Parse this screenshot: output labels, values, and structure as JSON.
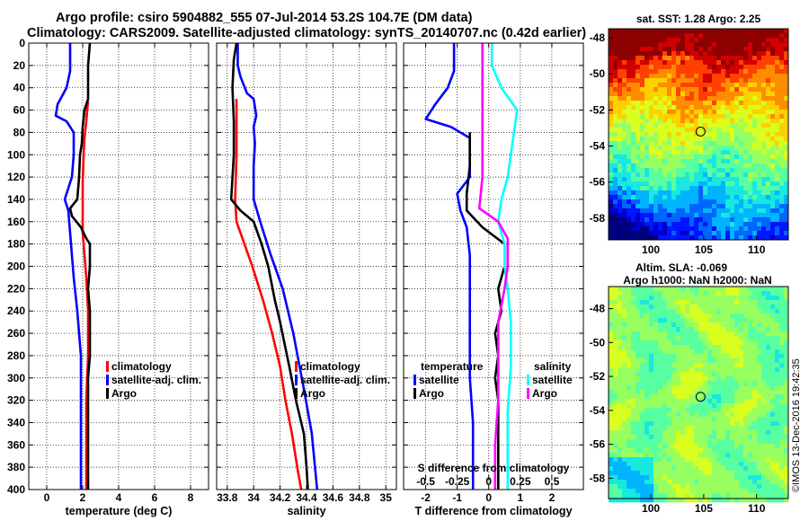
{
  "title_line1": "Argo profile: csiro 5904882_555 07-Jul-2014 53.2S 104.7E (DM data)",
  "title_line2": "Climatology: CARS2009. Satellite-adjusted climatology: synTS_20140707.nc (0.42d earlier)",
  "watermark": "©IMOS 13-Dec-2016 19:42:35",
  "colors": {
    "climatology": "#ff0000",
    "satellite": "#0000ff",
    "argo": "#000000",
    "sat_salinity": "#00ffff",
    "argo_salinity": "#ff00ff"
  },
  "chart_data": [
    {
      "id": "temperature",
      "type": "line",
      "xlabel": "temperature (deg C)",
      "ylabel": "",
      "xlim": [
        -1,
        9
      ],
      "ylim": [
        0,
        400
      ],
      "xticks": [
        0,
        2,
        4,
        6,
        8
      ],
      "xticklabels": [
        "0",
        "2",
        "4",
        "6",
        "8"
      ],
      "yticks": [
        0,
        20,
        40,
        60,
        80,
        100,
        120,
        140,
        160,
        180,
        200,
        220,
        240,
        260,
        280,
        300,
        320,
        340,
        360,
        380,
        400
      ],
      "grid": true,
      "legend": {
        "position": "bottom-right",
        "entries": [
          "climatology",
          "satellite-adj. clim.",
          "Argo"
        ]
      },
      "series": [
        {
          "name": "climatology",
          "color": "#ff0000",
          "points": [
            [
              2.3,
              52
            ],
            [
              2.25,
              60
            ],
            [
              2.2,
              70
            ],
            [
              2.1,
              85
            ],
            [
              2.05,
              100
            ],
            [
              2.0,
              125
            ],
            [
              2.0,
              150
            ],
            [
              2.0,
              170
            ],
            [
              2.1,
              190
            ],
            [
              2.2,
              210
            ],
            [
              2.3,
              240
            ],
            [
              2.3,
              280
            ],
            [
              2.2,
              320
            ],
            [
              2.2,
              360
            ],
            [
              2.2,
              400
            ]
          ]
        },
        {
          "name": "satellite-adj. clim.",
          "color": "#0000ff",
          "points": [
            [
              1.3,
              0
            ],
            [
              1.3,
              25
            ],
            [
              1.1,
              40
            ],
            [
              0.6,
              55
            ],
            [
              0.5,
              65
            ],
            [
              1.1,
              70
            ],
            [
              1.5,
              80
            ],
            [
              1.5,
              100
            ],
            [
              1.4,
              120
            ],
            [
              1.0,
              140
            ],
            [
              1.2,
              150
            ],
            [
              1.3,
              170
            ],
            [
              1.4,
              190
            ],
            [
              1.5,
              210
            ],
            [
              1.7,
              240
            ],
            [
              1.8,
              260
            ],
            [
              1.9,
              280
            ],
            [
              1.9,
              300
            ],
            [
              1.9,
              320
            ],
            [
              1.9,
              340
            ],
            [
              1.9,
              360
            ],
            [
              1.9,
              380
            ],
            [
              1.9,
              400
            ]
          ]
        },
        {
          "name": "Argo",
          "color": "#000000",
          "points": [
            [
              2.4,
              0
            ],
            [
              2.3,
              20
            ],
            [
              2.3,
              50
            ],
            [
              2.2,
              55
            ],
            [
              2.1,
              60
            ],
            [
              2.0,
              75
            ],
            [
              1.95,
              90
            ],
            [
              1.85,
              100
            ],
            [
              1.8,
              120
            ],
            [
              1.7,
              140
            ],
            [
              1.3,
              148
            ],
            [
              1.4,
              155
            ],
            [
              1.9,
              165
            ],
            [
              2.2,
              175
            ],
            [
              2.4,
              180
            ],
            [
              2.4,
              200
            ],
            [
              2.3,
              220
            ],
            [
              2.4,
              240
            ],
            [
              2.4,
              260
            ],
            [
              2.4,
              280
            ],
            [
              2.3,
              300
            ],
            [
              2.3,
              320
            ],
            [
              2.3,
              360
            ],
            [
              2.3,
              400
            ]
          ]
        }
      ]
    },
    {
      "id": "salinity",
      "type": "line",
      "xlabel": "salinity",
      "ylabel": "",
      "xlim": [
        33.72,
        35.08
      ],
      "ylim": [
        0,
        400
      ],
      "xticks": [
        33.8,
        34.0,
        34.2,
        34.4,
        34.6,
        34.8,
        35.0
      ],
      "xticklabels": [
        "33.8",
        "34",
        "34.2",
        "34.4",
        "34.6",
        "34.8",
        "35"
      ],
      "grid": true,
      "legend": {
        "position": "bottom-right",
        "entries": [
          "climatology",
          "satellite-adj. clim.",
          "Argo"
        ]
      },
      "series": [
        {
          "name": "climatology",
          "color": "#ff0000",
          "points": [
            [
              33.87,
              50
            ],
            [
              33.87,
              100
            ],
            [
              33.86,
              140
            ],
            [
              33.87,
              160
            ],
            [
              33.93,
              180
            ],
            [
              33.99,
              200
            ],
            [
              34.07,
              230
            ],
            [
              34.14,
              260
            ],
            [
              34.2,
              290
            ],
            [
              34.24,
              320
            ],
            [
              34.29,
              350
            ],
            [
              34.33,
              380
            ],
            [
              34.36,
              400
            ]
          ]
        },
        {
          "name": "satellite-adj. clim.",
          "color": "#0000ff",
          "points": [
            [
              33.88,
              0
            ],
            [
              33.88,
              20
            ],
            [
              33.9,
              30
            ],
            [
              33.95,
              45
            ],
            [
              34.0,
              50
            ],
            [
              34.02,
              65
            ],
            [
              34.0,
              75
            ],
            [
              34.01,
              90
            ],
            [
              34.0,
              110
            ],
            [
              34.0,
              140
            ],
            [
              34.05,
              160
            ],
            [
              34.13,
              190
            ],
            [
              34.22,
              220
            ],
            [
              34.3,
              260
            ],
            [
              34.38,
              310
            ],
            [
              34.44,
              350
            ],
            [
              34.48,
              400
            ]
          ]
        },
        {
          "name": "Argo",
          "color": "#000000",
          "points": [
            [
              33.87,
              0
            ],
            [
              33.85,
              15
            ],
            [
              33.84,
              40
            ],
            [
              33.85,
              70
            ],
            [
              33.85,
              100
            ],
            [
              33.83,
              140
            ],
            [
              33.9,
              150
            ],
            [
              34.0,
              160
            ],
            [
              34.06,
              180
            ],
            [
              34.11,
              200
            ],
            [
              34.16,
              230
            ],
            [
              34.2,
              250
            ],
            [
              34.27,
              290
            ],
            [
              34.32,
              320
            ],
            [
              34.38,
              350
            ],
            [
              34.4,
              380
            ],
            [
              34.41,
              400
            ]
          ]
        }
      ]
    },
    {
      "id": "difference",
      "type": "line",
      "xlabel": "T difference from climatology",
      "ylabel": "",
      "xlim": [
        -2.7,
        3
      ],
      "ylim": [
        0,
        400
      ],
      "xticks": [
        -2,
        -1,
        0,
        1,
        2
      ],
      "xticklabels": [
        "-2",
        "-1",
        "0",
        "1",
        "2"
      ],
      "top_axis_label": "S difference from climatology",
      "top_ticklabels": [
        "-0.5",
        "-0.25",
        "0",
        "0.25",
        "0.5"
      ],
      "grid": true,
      "legend": {
        "position": "bottom",
        "groups": [
          {
            "title": "temperature",
            "entries": [
              "satellite",
              "Argo"
            ]
          },
          {
            "title": "salinity",
            "entries": [
              "satellite",
              "Argo"
            ]
          }
        ]
      },
      "series": [
        {
          "name": "temperature satellite",
          "color": "#0000ff",
          "points": [
            [
              -1.1,
              0
            ],
            [
              -1.1,
              25
            ],
            [
              -1.3,
              40
            ],
            [
              -1.7,
              55
            ],
            [
              -2.0,
              68
            ],
            [
              -1.2,
              75
            ],
            [
              -0.6,
              85
            ],
            [
              -0.6,
              100
            ],
            [
              -0.6,
              120
            ],
            [
              -1.0,
              135
            ],
            [
              -0.9,
              150
            ],
            [
              -0.7,
              165
            ],
            [
              -0.6,
              190
            ],
            [
              -0.6,
              220
            ],
            [
              -0.6,
              260
            ],
            [
              -0.6,
              300
            ],
            [
              -0.5,
              340
            ],
            [
              -0.5,
              400
            ]
          ]
        },
        {
          "name": "temperature Argo",
          "color": "#000000",
          "points": [
            [
              -0.6,
              80
            ],
            [
              -0.6,
              110
            ],
            [
              -0.7,
              135
            ],
            [
              -0.7,
              150
            ],
            [
              -0.2,
              165
            ],
            [
              0.5,
              180
            ],
            [
              0.5,
              200
            ],
            [
              0.3,
              220
            ],
            [
              0.4,
              240
            ],
            [
              0.2,
              260
            ],
            [
              0.3,
              280
            ],
            [
              0.2,
              300
            ],
            [
              0.3,
              320
            ],
            [
              0.3,
              360
            ],
            [
              0.3,
              400
            ]
          ]
        },
        {
          "name": "salinity satellite",
          "color": "#00ffff",
          "points": [
            [
              0.1,
              0
            ],
            [
              0.1,
              20
            ],
            [
              0.4,
              40
            ],
            [
              0.9,
              60
            ],
            [
              0.8,
              80
            ],
            [
              0.7,
              100
            ],
            [
              0.6,
              120
            ],
            [
              0.4,
              140
            ],
            [
              0.3,
              160
            ],
            [
              0.5,
              180
            ],
            [
              0.5,
              200
            ],
            [
              0.6,
              220
            ],
            [
              0.7,
              250
            ],
            [
              0.7,
              290
            ],
            [
              0.6,
              330
            ],
            [
              0.6,
              370
            ],
            [
              0.6,
              400
            ]
          ]
        },
        {
          "name": "salinity Argo",
          "color": "#ff00ff",
          "points": [
            [
              -0.2,
              0
            ],
            [
              -0.2,
              40
            ],
            [
              -0.2,
              80
            ],
            [
              -0.2,
              120
            ],
            [
              -0.3,
              148
            ],
            [
              0.3,
              160
            ],
            [
              0.6,
              175
            ],
            [
              0.6,
              200
            ],
            [
              0.5,
              220
            ],
            [
              0.3,
              250
            ],
            [
              0.3,
              280
            ],
            [
              0.3,
              320
            ],
            [
              0.2,
              360
            ],
            [
              0.2,
              400
            ]
          ]
        }
      ]
    },
    {
      "id": "sst_map",
      "type": "heatmap",
      "title": "sat. SST: 1.28  Argo: 2.25",
      "x_range": [
        96,
        113
      ],
      "y_range": [
        -59.2,
        -47.5
      ],
      "xticks": [
        100,
        105,
        110
      ],
      "xticklabels": [
        "100",
        "105",
        "110"
      ],
      "yticks": [
        -48,
        -50,
        -52,
        -54,
        -56,
        -58
      ],
      "yticklabels": [
        "-48",
        "-50",
        "-52",
        "-54",
        "-56",
        "-58"
      ],
      "marker": {
        "lon": 104.7,
        "lat": -53.2
      }
    },
    {
      "id": "sla_map",
      "type": "heatmap",
      "title": "Altim. SLA: -0.069",
      "subtitle": "Argo h1000: NaN h2000: NaN",
      "x_range": [
        96,
        113
      ],
      "y_range": [
        -59.2,
        -46.7
      ],
      "xticks": [
        100,
        105,
        110
      ],
      "xticklabels": [
        "100",
        "105",
        "110"
      ],
      "yticks": [
        -48,
        -50,
        -52,
        -54,
        -56,
        -58
      ],
      "yticklabels": [
        "-48",
        "-50",
        "-52",
        "-54",
        "-56",
        "-58"
      ],
      "marker": {
        "lon": 104.7,
        "lat": -53.2
      }
    }
  ]
}
